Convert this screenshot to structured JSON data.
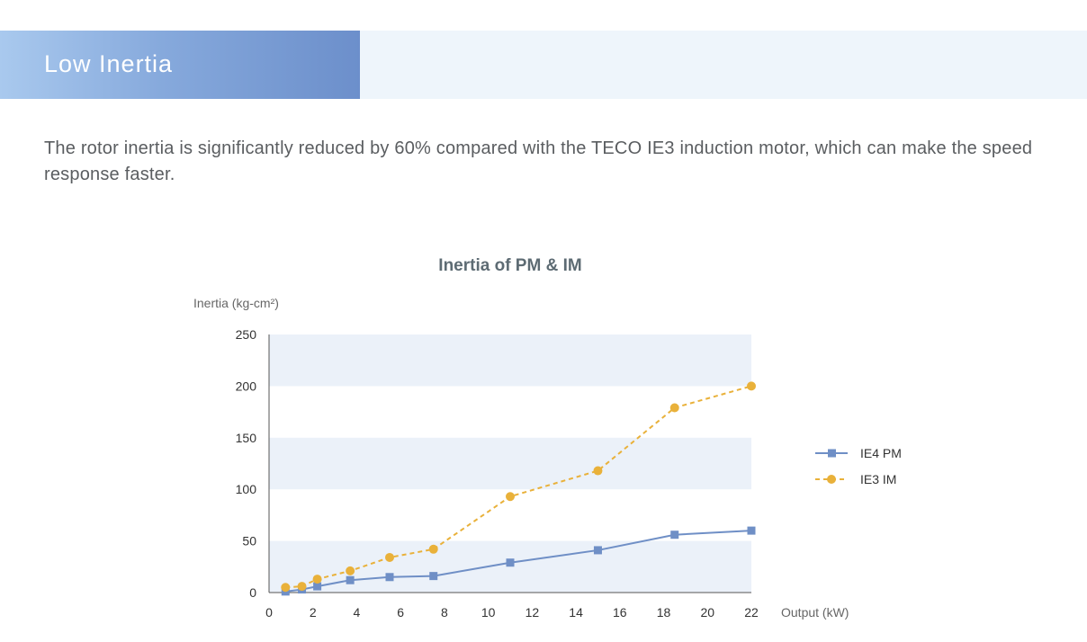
{
  "header": {
    "title": "Low Inertia"
  },
  "description": "The rotor inertia is significantly reduced by 60% compared with the TECO IE3 induction motor, which can make the speed response faster.",
  "colors": {
    "series_ie4": "#6f8fc6",
    "series_ie3": "#e9b13a",
    "band": "#ebf1f9",
    "title_gradient_start": "#a9c9ee",
    "title_gradient_end": "#6c8fcb"
  },
  "chart_data": {
    "type": "line",
    "title": "Inertia of PM & IM",
    "ylabel": "Inertia (kg-cm²)",
    "xlabel": "Output (kW)",
    "xlim": [
      0,
      22
    ],
    "ylim": [
      0,
      250
    ],
    "x_ticks": [
      0,
      2,
      4,
      6,
      8,
      10,
      12,
      14,
      16,
      18,
      20,
      22
    ],
    "y_ticks": [
      0,
      50,
      100,
      150,
      200,
      250
    ],
    "alternating_bands": true,
    "legend_position": "right",
    "series": [
      {
        "name": "IE4 PM",
        "style": "solid",
        "marker": "square",
        "color": "#6f8fc6",
        "x": [
          0.75,
          1.5,
          2.2,
          3.7,
          5.5,
          7.5,
          11,
          15,
          18.5,
          22
        ],
        "y": [
          1,
          3,
          6,
          12,
          15,
          16,
          29,
          41,
          56,
          60
        ]
      },
      {
        "name": "IE3 IM",
        "style": "dashed",
        "marker": "circle",
        "color": "#e9b13a",
        "x": [
          0.75,
          1.5,
          2.2,
          3.7,
          5.5,
          7.5,
          11,
          15,
          18.5,
          22
        ],
        "y": [
          5,
          6,
          13,
          21,
          34,
          42,
          93,
          118,
          179,
          200
        ]
      }
    ]
  }
}
